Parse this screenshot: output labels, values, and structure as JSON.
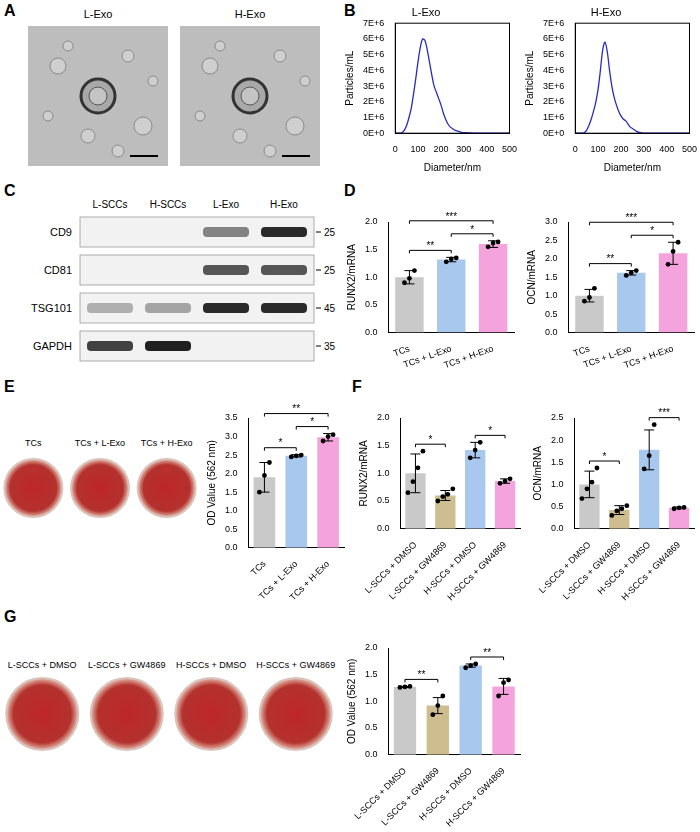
{
  "panel_labels": [
    "A",
    "B",
    "C",
    "D",
    "E",
    "F",
    "G"
  ],
  "tem_images": {
    "labels": [
      "L-Exo",
      "H-Exo"
    ]
  },
  "western_blot": {
    "lanes": [
      "L-SCCs",
      "H-SCCs",
      "L-Exo",
      "H-Exo"
    ],
    "rows": [
      {
        "name": "CD9",
        "kda": 25,
        "bands": [
          0,
          0,
          0.5,
          0.9
        ]
      },
      {
        "name": "CD81",
        "kda": 25,
        "bands": [
          0,
          0,
          0.7,
          0.7
        ]
      },
      {
        "name": "TSG101",
        "kda": 45,
        "bands": [
          0.3,
          0.35,
          0.9,
          0.9
        ]
      },
      {
        "name": "GAPDH",
        "kda": 35,
        "bands": [
          0.8,
          0.95,
          0,
          0
        ]
      }
    ]
  },
  "stain_images": {
    "E": [
      "TCs",
      "TCs + L-Exo",
      "TCs + H-Exo"
    ],
    "G": [
      "L-SCCs + DMSO",
      "L-SCCs + GW4869",
      "H-SCCs + DMSO",
      "H-SCCs + GW4869"
    ]
  },
  "chart_data": [
    {
      "type": "line",
      "title": "L-Exo",
      "x_label": "Diameter/nm",
      "y_label": "Particles/mL",
      "color": "#2a2ac0",
      "grid": false,
      "x": [
        0,
        10,
        20,
        30,
        40,
        50,
        60,
        70,
        80,
        90,
        100,
        110,
        120,
        130,
        140,
        150,
        160,
        170,
        180,
        190,
        200,
        210,
        220,
        230,
        240,
        250,
        260,
        270,
        280,
        290,
        300,
        350,
        400,
        450,
        500
      ],
      "values": [
        0,
        0,
        0,
        50000,
        200000,
        500000,
        1000000,
        1600000,
        2500000,
        3500000,
        4600000,
        5500000,
        6000000,
        5900000,
        5300000,
        4500000,
        3700000,
        3000000,
        2600000,
        2200000,
        1800000,
        1300000,
        900000,
        600000,
        400000,
        300000,
        200000,
        150000,
        100000,
        50000,
        30000,
        0,
        0,
        0,
        0
      ],
      "xlim": [
        0,
        500
      ],
      "xticks": [
        0,
        100,
        200,
        300,
        400,
        500
      ],
      "ylim": [
        0,
        7000000
      ],
      "yticks": [
        {
          "value": 0,
          "label": "0E+0"
        },
        {
          "value": 1000000,
          "label": "1E+6"
        },
        {
          "value": 2000000,
          "label": "2E+6"
        },
        {
          "value": 3000000,
          "label": "3E+6"
        },
        {
          "value": 4000000,
          "label": "4E+6"
        },
        {
          "value": 5000000,
          "label": "5E+6"
        },
        {
          "value": 6000000,
          "label": "6E+6"
        },
        {
          "value": 7000000,
          "label": "7E+6"
        }
      ]
    },
    {
      "type": "line",
      "title": "H-Exo",
      "x_label": "Diameter/nm",
      "y_label": "Particles/mL",
      "color": "#2a2ac0",
      "grid": false,
      "x": [
        0,
        10,
        20,
        30,
        40,
        50,
        60,
        70,
        80,
        90,
        100,
        110,
        120,
        130,
        140,
        150,
        160,
        170,
        180,
        190,
        200,
        210,
        220,
        230,
        240,
        250,
        260,
        270,
        280,
        290,
        300,
        350,
        400,
        450,
        500
      ],
      "values": [
        0,
        0,
        0,
        0,
        50000,
        200000,
        500000,
        900000,
        1400000,
        2000000,
        2800000,
        4000000,
        5300000,
        5800000,
        5200000,
        4000000,
        3000000,
        2300000,
        1800000,
        1400000,
        1100000,
        900000,
        800000,
        600000,
        400000,
        300000,
        200000,
        100000,
        50000,
        20000,
        0,
        0,
        0,
        0,
        0
      ],
      "xlim": [
        0,
        500
      ],
      "xticks": [
        0,
        100,
        200,
        300,
        400,
        500
      ],
      "ylim": [
        0,
        7000000
      ],
      "yticks": [
        {
          "value": 0,
          "label": "0E+0"
        },
        {
          "value": 1000000,
          "label": "1E+6"
        },
        {
          "value": 2000000,
          "label": "2E+6"
        },
        {
          "value": 3000000,
          "label": "3E+6"
        },
        {
          "value": 4000000,
          "label": "4E+6"
        },
        {
          "value": 5000000,
          "label": "5E+6"
        },
        {
          "value": 6000000,
          "label": "6E+6"
        },
        {
          "value": 7000000,
          "label": "7E+6"
        }
      ]
    },
    {
      "type": "bar",
      "y_label": "RUNX2/mRNA",
      "grid": false,
      "categories": [
        "TCs",
        "TCs + L-Exo",
        "TCs + H-Exo"
      ],
      "values": [
        1.0,
        1.32,
        1.6
      ],
      "errors": [
        0.12,
        0.04,
        0.06
      ],
      "points": [
        [
          0.9,
          0.98,
          1.12
        ],
        [
          1.28,
          1.33,
          1.35
        ],
        [
          1.55,
          1.62,
          1.64
        ]
      ],
      "colors": [
        "#c9c9c9",
        "#a9c8ee",
        "#f4a3dc"
      ],
      "ylim": [
        0,
        2.0
      ],
      "yticks": [
        {
          "value": 0,
          "label": "0.0"
        },
        0.5,
        {
          "value": 1,
          "label": "1.0"
        },
        1.5,
        {
          "value": 2,
          "label": "2.0"
        }
      ],
      "significance": [
        {
          "between": [
            "TCs",
            "TCs + L-Exo"
          ],
          "label": "**"
        },
        {
          "between": [
            "TCs + L-Exo",
            "TCs + H-Exo"
          ],
          "label": "*"
        },
        {
          "between": [
            "TCs",
            "TCs + H-Exo"
          ],
          "label": "***"
        }
      ]
    },
    {
      "type": "bar",
      "y_label": "OCN/mRNA",
      "grid": false,
      "categories": [
        "TCs",
        "TCs + L-Exo",
        "TCs + H-Exo"
      ],
      "values": [
        1.0,
        1.62,
        2.15
      ],
      "errors": [
        0.17,
        0.06,
        0.3
      ],
      "points": [
        [
          0.85,
          0.95,
          1.2
        ],
        [
          1.55,
          1.62,
          1.68
        ],
        [
          1.85,
          2.2,
          2.45
        ]
      ],
      "colors": [
        "#c9c9c9",
        "#a9c8ee",
        "#f4a3dc"
      ],
      "ylim": [
        0,
        3.0
      ],
      "yticks": [
        {
          "value": 0,
          "label": "0.0"
        },
        0.5,
        {
          "value": 1,
          "label": "1.0"
        },
        1.5,
        {
          "value": 2,
          "label": "2.0"
        },
        2.5,
        {
          "value": 3,
          "label": "3.0"
        }
      ],
      "significance": [
        {
          "between": [
            "TCs",
            "TCs + L-Exo"
          ],
          "label": "**"
        },
        {
          "between": [
            "TCs + L-Exo",
            "TCs + H-Exo"
          ],
          "label": "*"
        },
        {
          "between": [
            "TCs",
            "TCs + H-Exo"
          ],
          "label": "***"
        }
      ]
    },
    {
      "type": "bar",
      "y_label": "OD Value (562 nm)",
      "grid": false,
      "categories": [
        "TCs",
        "TCs + L-Exo",
        "TCs + H-Exo"
      ],
      "values": [
        1.9,
        2.48,
        2.98
      ],
      "errors": [
        0.4,
        0.03,
        0.1
      ],
      "points": [
        [
          1.5,
          1.95,
          2.3
        ],
        [
          2.45,
          2.48,
          2.5
        ],
        [
          2.88,
          3.0,
          3.05
        ]
      ],
      "colors": [
        "#c9c9c9",
        "#a9c8ee",
        "#f4a3dc"
      ],
      "ylim": [
        0,
        3.5
      ],
      "yticks": [
        {
          "value": 0,
          "label": "0.0"
        },
        0.5,
        {
          "value": 1,
          "label": "1.0"
        },
        1.5,
        {
          "value": 2,
          "label": "2.0"
        },
        2.5,
        {
          "value": 3,
          "label": "3.0"
        },
        3.5
      ],
      "significance": [
        {
          "between": [
            "TCs",
            "TCs + L-Exo"
          ],
          "label": "*"
        },
        {
          "between": [
            "TCs + L-Exo",
            "TCs + H-Exo"
          ],
          "label": "*"
        },
        {
          "between": [
            "TCs",
            "TCs + H-Exo"
          ],
          "label": "**"
        }
      ]
    },
    {
      "type": "bar",
      "y_label": "RUNX2/mRNA",
      "grid": false,
      "categories": [
        "L-SCCs + DMSO",
        "L-SCCs + GW4869",
        "H-SCCs + DMSO",
        "H-SCCs + GW4869"
      ],
      "values": [
        1.0,
        0.6,
        1.42,
        0.86
      ],
      "errors": [
        0.35,
        0.09,
        0.14,
        0.04
      ],
      "points": [
        [
          0.65,
          0.85,
          1.1,
          1.4
        ],
        [
          0.5,
          0.58,
          0.62,
          0.72
        ],
        [
          1.28,
          1.42,
          1.56
        ],
        [
          0.82,
          0.86,
          0.9
        ]
      ],
      "colors": [
        "#c9c9c9",
        "#cdbd8f",
        "#a9c8ee",
        "#f4a3dc"
      ],
      "ylim": [
        0,
        2.0
      ],
      "yticks": [
        {
          "value": 0,
          "label": "0.0"
        },
        0.5,
        {
          "value": 1,
          "label": "1.0"
        },
        1.5,
        {
          "value": 2,
          "label": "2.0"
        }
      ],
      "significance": [
        {
          "between": [
            "L-SCCs + DMSO",
            "L-SCCs + GW4869"
          ],
          "label": "*"
        },
        {
          "between": [
            "H-SCCs + DMSO",
            "H-SCCs + GW4869"
          ],
          "label": "*"
        }
      ]
    },
    {
      "type": "bar",
      "y_label": "OCN/mRNA",
      "grid": false,
      "categories": [
        "L-SCCs + DMSO",
        "L-SCCs + GW4869",
        "H-SCCs + DMSO",
        "H-SCCs + GW4869"
      ],
      "values": [
        1.0,
        0.42,
        1.78,
        0.47
      ],
      "errors": [
        0.3,
        0.1,
        0.45,
        0.02
      ],
      "points": [
        [
          0.68,
          0.9,
          1.05,
          1.37
        ],
        [
          0.3,
          0.4,
          0.45,
          0.52
        ],
        [
          1.35,
          1.65,
          2.35
        ],
        [
          0.45,
          0.47,
          0.48
        ]
      ],
      "colors": [
        "#c9c9c9",
        "#cdbd8f",
        "#a9c8ee",
        "#f4a3dc"
      ],
      "ylim": [
        0,
        2.5
      ],
      "yticks": [
        {
          "value": 0,
          "label": "0.0"
        },
        0.5,
        {
          "value": 1,
          "label": "1.0"
        },
        1.5,
        {
          "value": 2,
          "label": "2.0"
        },
        2.5
      ],
      "significance": [
        {
          "between": [
            "L-SCCs + DMSO",
            "L-SCCs + GW4869"
          ],
          "label": "*"
        },
        {
          "between": [
            "H-SCCs + DMSO",
            "H-SCCs + GW4869"
          ],
          "label": "***"
        }
      ]
    },
    {
      "type": "bar",
      "y_label": "OD Value (562 nm)",
      "grid": false,
      "categories": [
        "L-SCCs + DMSO",
        "L-SCCs + GW4869",
        "H-SCCs + DMSO",
        "H-SCCs + GW4869"
      ],
      "values": [
        1.27,
        0.92,
        1.67,
        1.28
      ],
      "errors": [
        0.01,
        0.15,
        0.03,
        0.15
      ],
      "points": [
        [
          1.26,
          1.27,
          1.28
        ],
        [
          0.75,
          0.92,
          1.1
        ],
        [
          1.63,
          1.67,
          1.7
        ],
        [
          1.1,
          1.35,
          1.4
        ]
      ],
      "colors": [
        "#c9c9c9",
        "#cdbd8f",
        "#a9c8ee",
        "#f4a3dc"
      ],
      "ylim": [
        0,
        2.0
      ],
      "yticks": [
        {
          "value": 0,
          "label": "0.0"
        },
        0.5,
        {
          "value": 1,
          "label": "1.0"
        },
        1.5,
        {
          "value": 2,
          "label": "2.0"
        }
      ],
      "significance": [
        {
          "between": [
            "L-SCCs + DMSO",
            "L-SCCs + GW4869"
          ],
          "label": "**"
        },
        {
          "between": [
            "H-SCCs + DMSO",
            "H-SCCs + GW4869"
          ],
          "label": "**"
        }
      ]
    }
  ]
}
